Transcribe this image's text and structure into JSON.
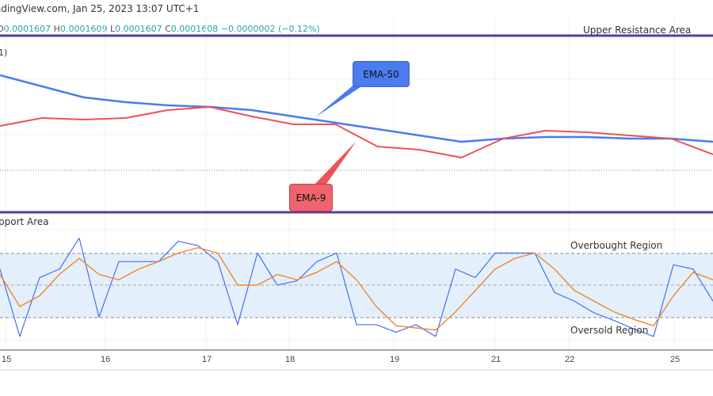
{
  "header": {
    "title": "adingView.com, Jan 25, 2023 13:07 UTC+1",
    "ohlc": {
      "open": "0.0001607",
      "high": "0.0001609",
      "low": "0.0001607",
      "close": "0.0001608",
      "change": "−0.0000002 (−0.12%)"
    },
    "indicator_suffix": "1)"
  },
  "annotations": {
    "upper": "Upper Resistance Area",
    "lower": "pport Area",
    "overbought": "Overbought Region",
    "oversold": "Oversold Region",
    "ema50": "EMA-50",
    "ema9": "EMA-9"
  },
  "colors": {
    "ema50": "#4a7cf0",
    "ema9": "#f0505a",
    "resistance": "#5b3aa0",
    "stoch_k": "#4a6ef0",
    "stoch_d": "#f0862a",
    "band": "#e3f0fb",
    "positive": "#26a69a"
  },
  "chart_data": [
    {
      "type": "line",
      "title": "",
      "ylim": [
        0.00015815,
        0.0001693
      ],
      "last_price": 0.0001608,
      "x_ticks": [
        "15",
        "16",
        "17",
        "18",
        "19",
        "21",
        "22",
        "25"
      ],
      "series": [
        {
          "name": "EMA-50",
          "values": [
            0.0001668,
            0.0001661,
            0.0001654,
            0.0001651,
            0.0001649,
            0.0001648,
            0.0001646,
            0.0001642,
            0.0001638,
            0.0001634,
            0.000163,
            0.0001626,
            0.0001628,
            0.0001629,
            0.0001629,
            0.0001628,
            0.0001628,
            0.0001626
          ]
        },
        {
          "name": "EMA-9",
          "values": [
            0.0001636,
            0.0001641,
            0.000164,
            0.0001641,
            0.0001646,
            0.0001648,
            0.0001642,
            0.0001637,
            0.0001637,
            0.0001623,
            0.0001621,
            0.0001616,
            0.0001628,
            0.0001633,
            0.0001632,
            0.000163,
            0.0001628,
            0.0001618
          ]
        }
      ]
    },
    {
      "type": "line",
      "title": "",
      "ylim": [
        0,
        100
      ],
      "levels": [
        80,
        50,
        20
      ],
      "series": [
        {
          "values": [
            65,
            2,
            57,
            65,
            94,
            20,
            72,
            72,
            72,
            91,
            87,
            72,
            13,
            80,
            50,
            54,
            72,
            80,
            13,
            13,
            6,
            13,
            2,
            65,
            57,
            80,
            80,
            80,
            43,
            35,
            24,
            17,
            9,
            2,
            69,
            65,
            35
          ]
        },
        {
          "values": [
            60,
            30,
            40,
            60,
            75,
            60,
            55,
            65,
            72,
            80,
            85,
            80,
            50,
            50,
            60,
            55,
            62,
            72,
            55,
            30,
            12,
            10,
            8,
            25,
            45,
            65,
            75,
            80,
            65,
            45,
            35,
            25,
            18,
            12,
            40,
            62,
            55
          ]
        }
      ]
    }
  ]
}
